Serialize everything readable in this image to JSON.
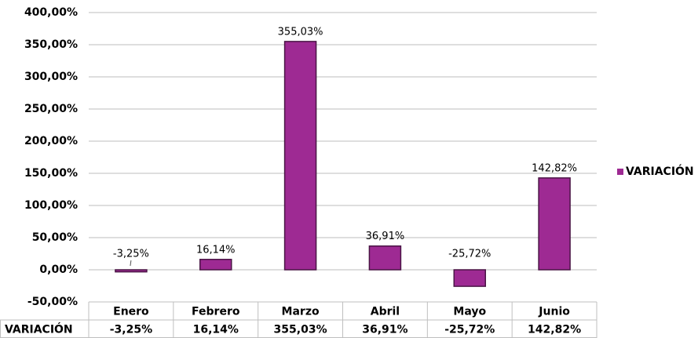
{
  "chart_data": {
    "type": "bar",
    "categories": [
      "Enero",
      "Febrero",
      "Marzo",
      "Abril",
      "Mayo",
      "Junio"
    ],
    "series": [
      {
        "name": "VARIACIÓN",
        "color": "#9e2a93",
        "values": [
          -3.25,
          16.14,
          355.03,
          36.91,
          -25.72,
          142.82
        ],
        "value_labels": [
          "-3,25%",
          "16,14%",
          "355,03%",
          "36,91%",
          "-25,72%",
          "142,82%"
        ]
      }
    ],
    "ylim": [
      -50,
      400
    ],
    "yticks": [
      {
        "value": -50,
        "label": "-50,00%"
      },
      {
        "value": 0,
        "label": "0,00%"
      },
      {
        "value": 50,
        "label": "50,00%"
      },
      {
        "value": 100,
        "label": "100,00%"
      },
      {
        "value": 150,
        "label": "150,00%"
      },
      {
        "value": 200,
        "label": "200,00%"
      },
      {
        "value": 250,
        "label": "250,00%"
      },
      {
        "value": 300,
        "label": "300,00%"
      },
      {
        "value": 350,
        "label": "350,00%"
      },
      {
        "value": 400,
        "label": "400,00%"
      }
    ],
    "grid": true,
    "legend": "right"
  }
}
